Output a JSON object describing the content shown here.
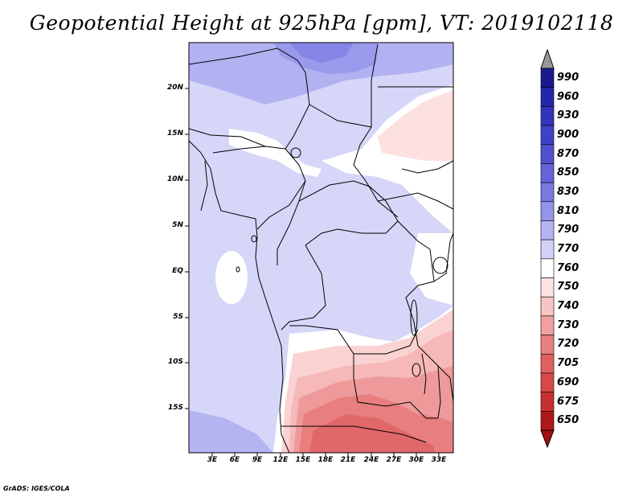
{
  "title": "Geopotential Height at 925hPa [gpm], VT: 2019102118",
  "map": {
    "lat_labels": [
      "20N",
      "15N",
      "10N",
      "5N",
      "EQ",
      "5S",
      "10S",
      "15S"
    ],
    "lon_labels": [
      "3E",
      "6E",
      "9E",
      "12E",
      "15E",
      "18E",
      "21E",
      "24E",
      "27E",
      "30E",
      "33E"
    ]
  },
  "colorbar": {
    "levels": [
      "990",
      "960",
      "930",
      "900",
      "870",
      "850",
      "830",
      "810",
      "790",
      "770",
      "760",
      "750",
      "740",
      "730",
      "720",
      "705",
      "690",
      "675",
      "650"
    ],
    "colors": [
      "#1a1a8c",
      "#2626a8",
      "#3333bb",
      "#4040c8",
      "#5050d0",
      "#6464d8",
      "#7878e0",
      "#9494ea",
      "#b4b4f2",
      "#d2d2f8",
      "#ffffff",
      "#fde2e2",
      "#f8c4c4",
      "#f0a0a0",
      "#e88080",
      "#e06060",
      "#d84848",
      "#c83030",
      "#b01818"
    ],
    "top_arrow_color": "#999999",
    "bottom_arrow_color": "#a01010"
  },
  "credit": "GrADS: IGES/COLA"
}
